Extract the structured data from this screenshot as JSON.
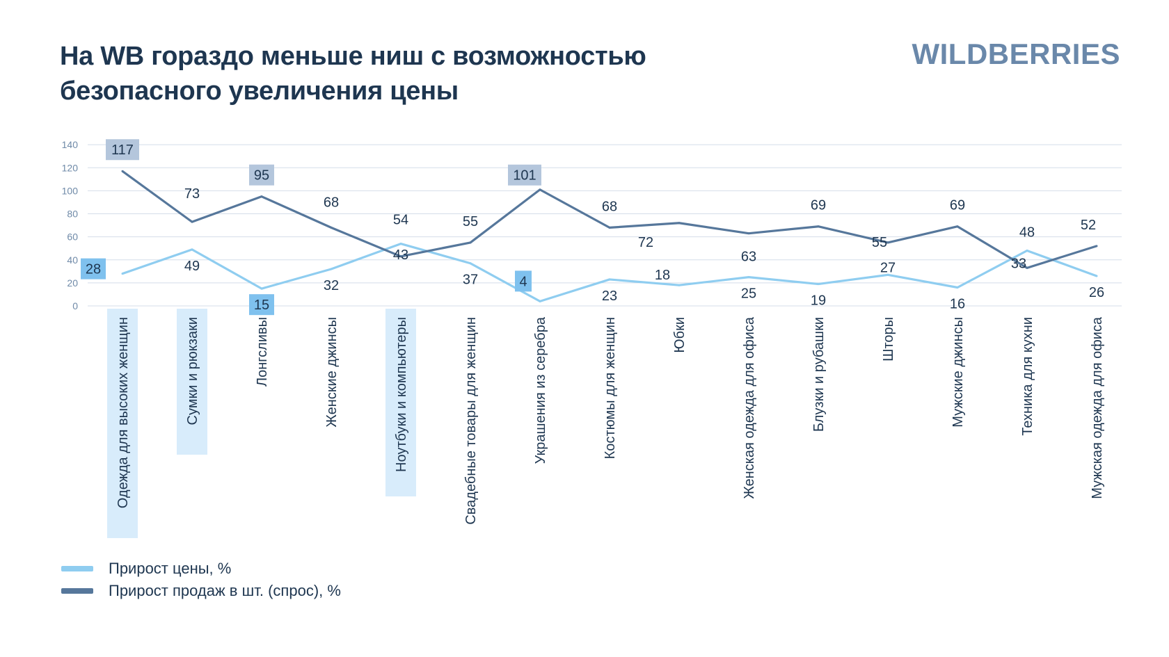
{
  "header": {
    "title_line1": "На WB гораздо меньше ниш с возможностью",
    "title_line2": "безопасного увеличения цены",
    "brand": "WILDBERRIES"
  },
  "colors": {
    "price": "#8fcdf0",
    "demand": "#56779b",
    "grid": "#d4dde9",
    "axis_text": "#6f8aa8",
    "text": "#1e3650",
    "highlight_category": "#d8ecfb",
    "highlight_price_box": "#7fc1ee",
    "highlight_demand_box": "#b4c6dc"
  },
  "chart_data": {
    "type": "line",
    "title": "На WB гораздо меньше ниш с возможностью безопасного увеличения цены",
    "categories": [
      "Одежда для высоких женщин",
      "Сумки и рюкзаки",
      "Лонгсливы",
      "Женские джинсы",
      "Ноутбуки и компьютеры",
      "Свадебные товары для женщин",
      "Украшения из серебра",
      "Костюмы для женщин",
      "Юбки",
      "Женская одежда для офиса",
      "Блузки и рубашки",
      "Шторы",
      "Мужские джинсы",
      "Техника для кухни",
      "Мужская одежда для офиса"
    ],
    "series": [
      {
        "name": "Прирост цены, %",
        "key": "price",
        "values": [
          28,
          49,
          15,
          32,
          54,
          37,
          4,
          23,
          18,
          25,
          19,
          27,
          16,
          48,
          26
        ]
      },
      {
        "name": "Прирост продаж в шт. (спрос), %",
        "key": "demand",
        "values": [
          117,
          73,
          95,
          68,
          43,
          55,
          101,
          68,
          72,
          63,
          69,
          55,
          69,
          33,
          52
        ]
      }
    ],
    "ylim": [
      0,
      140
    ],
    "yticks": [
      0,
      20,
      40,
      60,
      80,
      100,
      120,
      140
    ],
    "grid": true,
    "legend_position": "bottom-left",
    "highlighted_categories": [
      0,
      1,
      4
    ],
    "highlighted_price_labels": [
      0,
      2,
      6
    ],
    "highlighted_demand_labels": [
      0,
      2,
      6
    ]
  }
}
